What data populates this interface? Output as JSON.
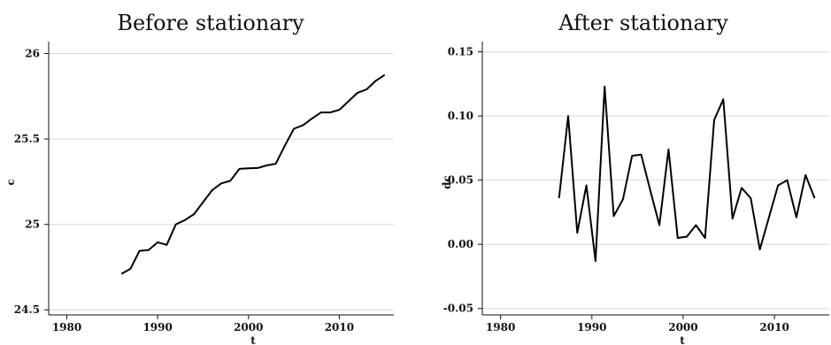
{
  "chart_data": [
    {
      "type": "line",
      "title": "Before stationary",
      "xlabel": "t",
      "ylabel": "c",
      "xlim": [
        1978,
        2016
      ],
      "ylim": [
        24.47,
        26.07
      ],
      "x_ticks": [
        1980,
        1990,
        2000,
        2010
      ],
      "x_tick_labels": [
        "1980",
        "1990",
        "2000",
        "2010"
      ],
      "y_ticks": [
        24.5,
        25,
        25.5,
        26
      ],
      "y_tick_labels": [
        "24.5",
        "25",
        "25.5",
        "26"
      ],
      "grid": true,
      "series": [
        {
          "x": [
            1986,
            1987,
            1988,
            1989,
            1990,
            1991,
            1992,
            1993,
            1994,
            1995,
            1996,
            1997,
            1998,
            1999,
            2000,
            2001,
            2002,
            2003,
            2004,
            2005,
            2006,
            2007,
            2008,
            2009,
            2010,
            2011,
            2012,
            2013,
            2014,
            2015
          ],
          "y": [
            24.71,
            24.74,
            24.845,
            24.85,
            24.895,
            24.88,
            25.0,
            25.025,
            25.06,
            25.13,
            25.2,
            25.24,
            25.255,
            25.325,
            25.328,
            25.33,
            25.345,
            25.355,
            25.46,
            25.56,
            25.58,
            25.62,
            25.655,
            25.655,
            25.67,
            25.72,
            25.77,
            25.79,
            25.84,
            25.875
          ]
        }
      ]
    },
    {
      "type": "line",
      "title": "After stationary",
      "xlabel": "t",
      "ylabel": "dc",
      "xlim": [
        1978,
        2016
      ],
      "ylim": [
        -0.055,
        0.158
      ],
      "x_ticks": [
        1980,
        1990,
        2000,
        2010
      ],
      "x_tick_labels": [
        "1980",
        "1990",
        "2000",
        "2010"
      ],
      "y_ticks": [
        -0.05,
        0.0,
        0.05,
        0.1,
        0.15
      ],
      "y_tick_labels": [
        "-0.05",
        "0.00",
        "0.05",
        "0.10",
        "0.15"
      ],
      "grid": true,
      "series": [
        {
          "x": [
            1986.4,
            1987.4,
            1988.4,
            1989.4,
            1990.4,
            1991.4,
            1992.4,
            1993.4,
            1994.4,
            1995.4,
            1996.4,
            1997.4,
            1998.4,
            1999.4,
            2000.4,
            2001.4,
            2002.4,
            2003.4,
            2004.4,
            2005.4,
            2006.4,
            2007.4,
            2008.4,
            2009.4,
            2010.4,
            2011.4,
            2012.4,
            2013.4,
            2014.4
          ],
          "y": [
            0.036,
            0.1,
            0.009,
            0.046,
            -0.013,
            0.123,
            0.022,
            0.035,
            0.069,
            0.07,
            0.042,
            0.015,
            0.074,
            0.005,
            0.006,
            0.015,
            0.005,
            0.097,
            0.113,
            0.02,
            0.044,
            0.036,
            -0.004,
            0.021,
            0.046,
            0.05,
            0.021,
            0.054,
            0.036
          ]
        }
      ]
    }
  ]
}
